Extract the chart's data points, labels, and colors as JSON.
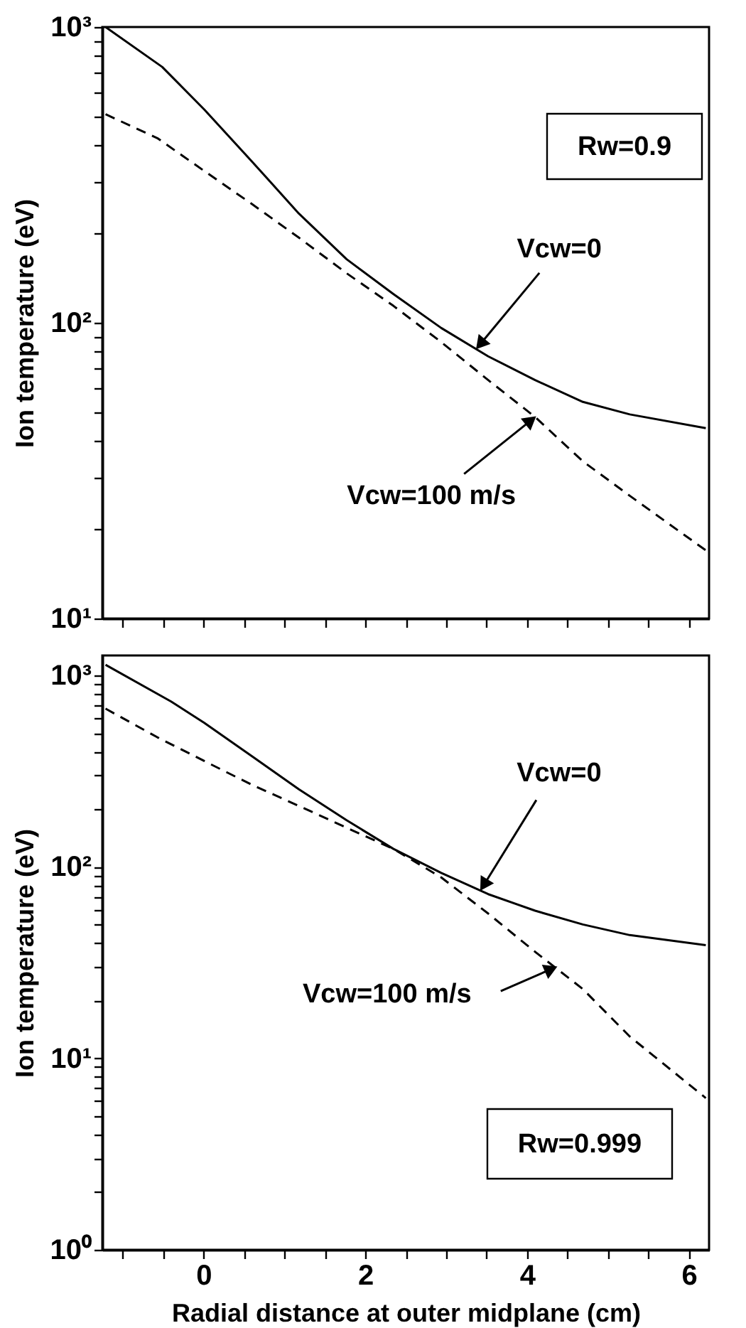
{
  "chart_data": [
    {
      "type": "line",
      "ylabel": "Ion temperature (eV)",
      "xlim": [
        -1.25,
        6.25
      ],
      "ylim": [
        10,
        1000
      ],
      "log": "y",
      "tick_labels": "y",
      "legend": false,
      "grid": false,
      "xticks": [
        {
          "value": -1,
          "label": null
        },
        {
          "value": -0.5,
          "label": null
        },
        0,
        {
          "value": 0.5,
          "label": null
        },
        {
          "value": 1,
          "label": null
        },
        {
          "value": 1.5,
          "label": null
        },
        2,
        {
          "value": 2.5,
          "label": null
        },
        {
          "value": 3,
          "label": null
        },
        {
          "value": 3.5,
          "label": null
        },
        4,
        {
          "value": 4.5,
          "label": null
        },
        {
          "value": 5,
          "label": null
        },
        {
          "value": 5.5,
          "label": null
        },
        6
      ],
      "yticks": [
        {
          "value": 10,
          "label": "10¹"
        },
        {
          "value": 20,
          "label": null
        },
        {
          "value": 30,
          "label": null
        },
        {
          "value": 40,
          "label": null
        },
        {
          "value": 50,
          "label": null
        },
        {
          "value": 60,
          "label": null
        },
        {
          "value": 70,
          "label": null
        },
        {
          "value": 80,
          "label": null
        },
        {
          "value": 90,
          "label": null
        },
        {
          "value": 100,
          "label": "10²"
        },
        {
          "value": 200,
          "label": null
        },
        {
          "value": 300,
          "label": null
        },
        {
          "value": 400,
          "label": null
        },
        {
          "value": 500,
          "label": null
        },
        {
          "value": 600,
          "label": null
        },
        {
          "value": 700,
          "label": null
        },
        {
          "value": 800,
          "label": null
        },
        {
          "value": 900,
          "label": null
        },
        {
          "value": 1000,
          "label": "10³"
        }
      ],
      "series": [
        {
          "color": "#000000",
          "line_style": "solid",
          "x": [
            -1.21,
            -0.51,
            0.01,
            0.6,
            1.18,
            1.77,
            2.35,
            2.94,
            3.52,
            4.1,
            4.69,
            5.27,
            6.21
          ],
          "values": [
            1000,
            733,
            526,
            351,
            234,
            164,
            125,
            96,
            77,
            64,
            54,
            49,
            44
          ]
        },
        {
          "color": "#000000",
          "line_style": "dashed",
          "x": [
            -1.21,
            -0.57,
            0.01,
            0.6,
            1.18,
            1.77,
            2.35,
            2.94,
            3.52,
            4.1,
            4.69,
            5.27,
            6.21
          ],
          "values": [
            507,
            421,
            326,
            252,
            194,
            147,
            114,
            86,
            64,
            48,
            34,
            26,
            17
          ]
        }
      ],
      "annotations": [
        {
          "text": "Vcw=0",
          "x": 3.38,
          "y": 82
        },
        {
          "text": "Vcw=100 m/s",
          "x": 4.1,
          "y": 48
        },
        "Rw=0.9"
      ]
    },
    {
      "type": "line",
      "ylabel": "Ion temperature (eV)",
      "xlabel": "Radial distance at outer midplane (cm)",
      "xlim": [
        -1.25,
        6.25
      ],
      "ylim": [
        1,
        1270
      ],
      "log": "y",
      "legend": false,
      "grid": false,
      "xticks": [
        {
          "value": -1,
          "label": null
        },
        {
          "value": -0.5,
          "label": null
        },
        0,
        {
          "value": 0.5,
          "label": null
        },
        {
          "value": 1,
          "label": null
        },
        {
          "value": 1.5,
          "label": null
        },
        2,
        {
          "value": 2.5,
          "label": null
        },
        {
          "value": 3,
          "label": null
        },
        {
          "value": 3.5,
          "label": null
        },
        4,
        {
          "value": 4.5,
          "label": null
        },
        {
          "value": 5,
          "label": null
        },
        {
          "value": 5.5,
          "label": null
        },
        6
      ],
      "yticks": [
        {
          "value": 1,
          "label": "10⁰"
        },
        {
          "value": 2,
          "label": null
        },
        {
          "value": 3,
          "label": null
        },
        {
          "value": 4,
          "label": null
        },
        {
          "value": 5,
          "label": null
        },
        {
          "value": 6,
          "label": null
        },
        {
          "value": 7,
          "label": null
        },
        {
          "value": 8,
          "label": null
        },
        {
          "value": 9,
          "label": null
        },
        {
          "value": 10,
          "label": "10¹"
        },
        {
          "value": 20,
          "label": null
        },
        {
          "value": 30,
          "label": null
        },
        {
          "value": 40,
          "label": null
        },
        {
          "value": 50,
          "label": null
        },
        {
          "value": 60,
          "label": null
        },
        {
          "value": 70,
          "label": null
        },
        {
          "value": 80,
          "label": null
        },
        {
          "value": 90,
          "label": null
        },
        {
          "value": 100,
          "label": "10²"
        },
        {
          "value": 200,
          "label": null
        },
        {
          "value": 300,
          "label": null
        },
        {
          "value": 400,
          "label": null
        },
        {
          "value": 500,
          "label": null
        },
        {
          "value": 600,
          "label": null
        },
        {
          "value": 700,
          "label": null
        },
        {
          "value": 800,
          "label": null
        },
        {
          "value": 900,
          "label": null
        },
        {
          "value": 1000,
          "label": "10³"
        }
      ],
      "series": [
        {
          "color": "#000000",
          "line_style": "solid",
          "x": [
            -1.21,
            -0.4,
            0.01,
            0.6,
            1.18,
            1.77,
            2.35,
            2.94,
            3.52,
            4.1,
            4.69,
            5.27,
            6.21
          ],
          "values": [
            1135,
            730,
            565,
            378,
            254,
            175,
            124,
            93,
            72,
            59,
            50,
            44,
            39
          ]
        },
        {
          "color": "#000000",
          "line_style": "dashed",
          "x": [
            -1.21,
            -0.57,
            0.01,
            0.6,
            1.18,
            1.77,
            2.35,
            2.94,
            3.52,
            4.1,
            4.69,
            5.27,
            6.21
          ],
          "values": [
            670,
            475,
            357,
            268,
            208,
            160,
            124,
            88,
            57,
            36,
            23,
            13,
            6.2
          ]
        }
      ],
      "annotations": [
        {
          "text": "Vcw=0",
          "x": 3.43,
          "y": 76
        },
        {
          "text": "Vcw=100 m/s",
          "x": 4.36,
          "y": 30
        },
        "Rw=0.999"
      ]
    }
  ]
}
